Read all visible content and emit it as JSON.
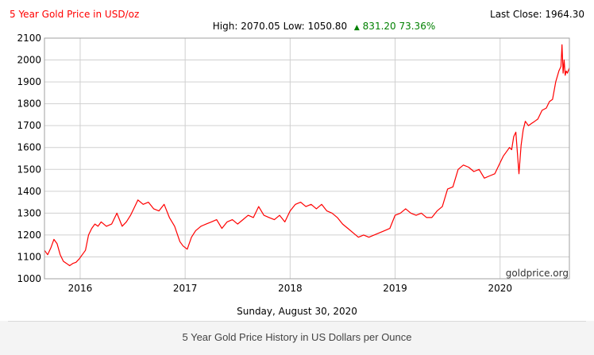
{
  "header": {
    "title": "5 Year Gold Price in USD/oz",
    "last_close_label": "Last Close: 1964.30",
    "stats_prefix": "High: 2070.05 Low: 1050.80",
    "change_arrow": "▲",
    "change_text": "831.20 73.36%",
    "title_color": "#ff0000",
    "change_color": "#008000"
  },
  "date_label": "Sunday, August 30, 2020",
  "watermark": "goldprice.org",
  "caption": "5 Year Gold Price History in US Dollars per Ounce",
  "chart_data": {
    "type": "line",
    "title": "5 Year Gold Price in USD/oz",
    "xlabel": "",
    "ylabel": "",
    "ylim": [
      1000,
      2100
    ],
    "xlim": [
      2015.66,
      2020.66
    ],
    "grid": true,
    "line_color": "#ff0000",
    "y_ticks": [
      "1000",
      "1100",
      "1200",
      "1300",
      "1400",
      "1500",
      "1600",
      "1700",
      "1800",
      "1900",
      "2000",
      "2100"
    ],
    "x_ticks": [
      "2016",
      "2017",
      "2018",
      "2019",
      "2020"
    ],
    "x_tick_values": [
      2016,
      2017,
      2018,
      2019,
      2020
    ],
    "series": [
      {
        "x": [
          2015.66,
          2015.69,
          2015.72,
          2015.75,
          2015.78,
          2015.81,
          2015.84,
          2015.87,
          2015.9,
          2015.93,
          2015.96,
          2015.99,
          2016.02,
          2016.05,
          2016.08,
          2016.11,
          2016.14,
          2016.17,
          2016.2,
          2016.25,
          2016.3,
          2016.35,
          2016.4,
          2016.44,
          2016.48,
          2016.52,
          2016.55,
          2016.6,
          2016.65,
          2016.7,
          2016.75,
          2016.8,
          2016.85,
          2016.9,
          2016.95,
          2016.98,
          2017.02,
          2017.06,
          2017.1,
          2017.15,
          2017.2,
          2017.25,
          2017.3,
          2017.35,
          2017.4,
          2017.45,
          2017.5,
          2017.55,
          2017.6,
          2017.65,
          2017.7,
          2017.75,
          2017.8,
          2017.85,
          2017.9,
          2017.95,
          2018.0,
          2018.05,
          2018.1,
          2018.15,
          2018.2,
          2018.25,
          2018.3,
          2018.35,
          2018.4,
          2018.45,
          2018.5,
          2018.55,
          2018.6,
          2018.65,
          2018.7,
          2018.75,
          2018.8,
          2018.85,
          2018.9,
          2018.95,
          2019.0,
          2019.05,
          2019.1,
          2019.15,
          2019.2,
          2019.25,
          2019.3,
          2019.35,
          2019.4,
          2019.45,
          2019.5,
          2019.55,
          2019.6,
          2019.65,
          2019.7,
          2019.75,
          2019.8,
          2019.85,
          2019.9,
          2019.95,
          2020.0,
          2020.03,
          2020.06,
          2020.09,
          2020.11,
          2020.13,
          2020.15,
          2020.18,
          2020.2,
          2020.22,
          2020.24,
          2020.27,
          2020.3,
          2020.33,
          2020.36,
          2020.4,
          2020.44,
          2020.47,
          2020.5,
          2020.53,
          2020.56,
          2020.58,
          2020.59,
          2020.6,
          2020.61,
          2020.62,
          2020.63,
          2020.64,
          2020.66
        ],
        "y": [
          1130,
          1110,
          1140,
          1180,
          1160,
          1110,
          1080,
          1070,
          1060,
          1070,
          1075,
          1090,
          1110,
          1130,
          1200,
          1230,
          1250,
          1240,
          1260,
          1240,
          1250,
          1300,
          1240,
          1260,
          1290,
          1330,
          1360,
          1340,
          1350,
          1320,
          1310,
          1340,
          1280,
          1240,
          1170,
          1150,
          1135,
          1190,
          1220,
          1240,
          1250,
          1260,
          1270,
          1230,
          1260,
          1270,
          1250,
          1270,
          1290,
          1280,
          1330,
          1290,
          1280,
          1270,
          1290,
          1260,
          1310,
          1340,
          1350,
          1330,
          1340,
          1320,
          1340,
          1310,
          1300,
          1280,
          1250,
          1230,
          1210,
          1190,
          1200,
          1190,
          1200,
          1210,
          1220,
          1230,
          1290,
          1300,
          1320,
          1300,
          1290,
          1300,
          1280,
          1280,
          1310,
          1330,
          1410,
          1420,
          1500,
          1520,
          1510,
          1490,
          1500,
          1460,
          1470,
          1480,
          1530,
          1560,
          1580,
          1600,
          1590,
          1650,
          1670,
          1480,
          1610,
          1680,
          1720,
          1700,
          1710,
          1720,
          1730,
          1770,
          1780,
          1810,
          1820,
          1900,
          1950,
          1970,
          2070,
          1940,
          2000,
          1930,
          1950,
          1940,
          1964
        ]
      }
    ]
  }
}
